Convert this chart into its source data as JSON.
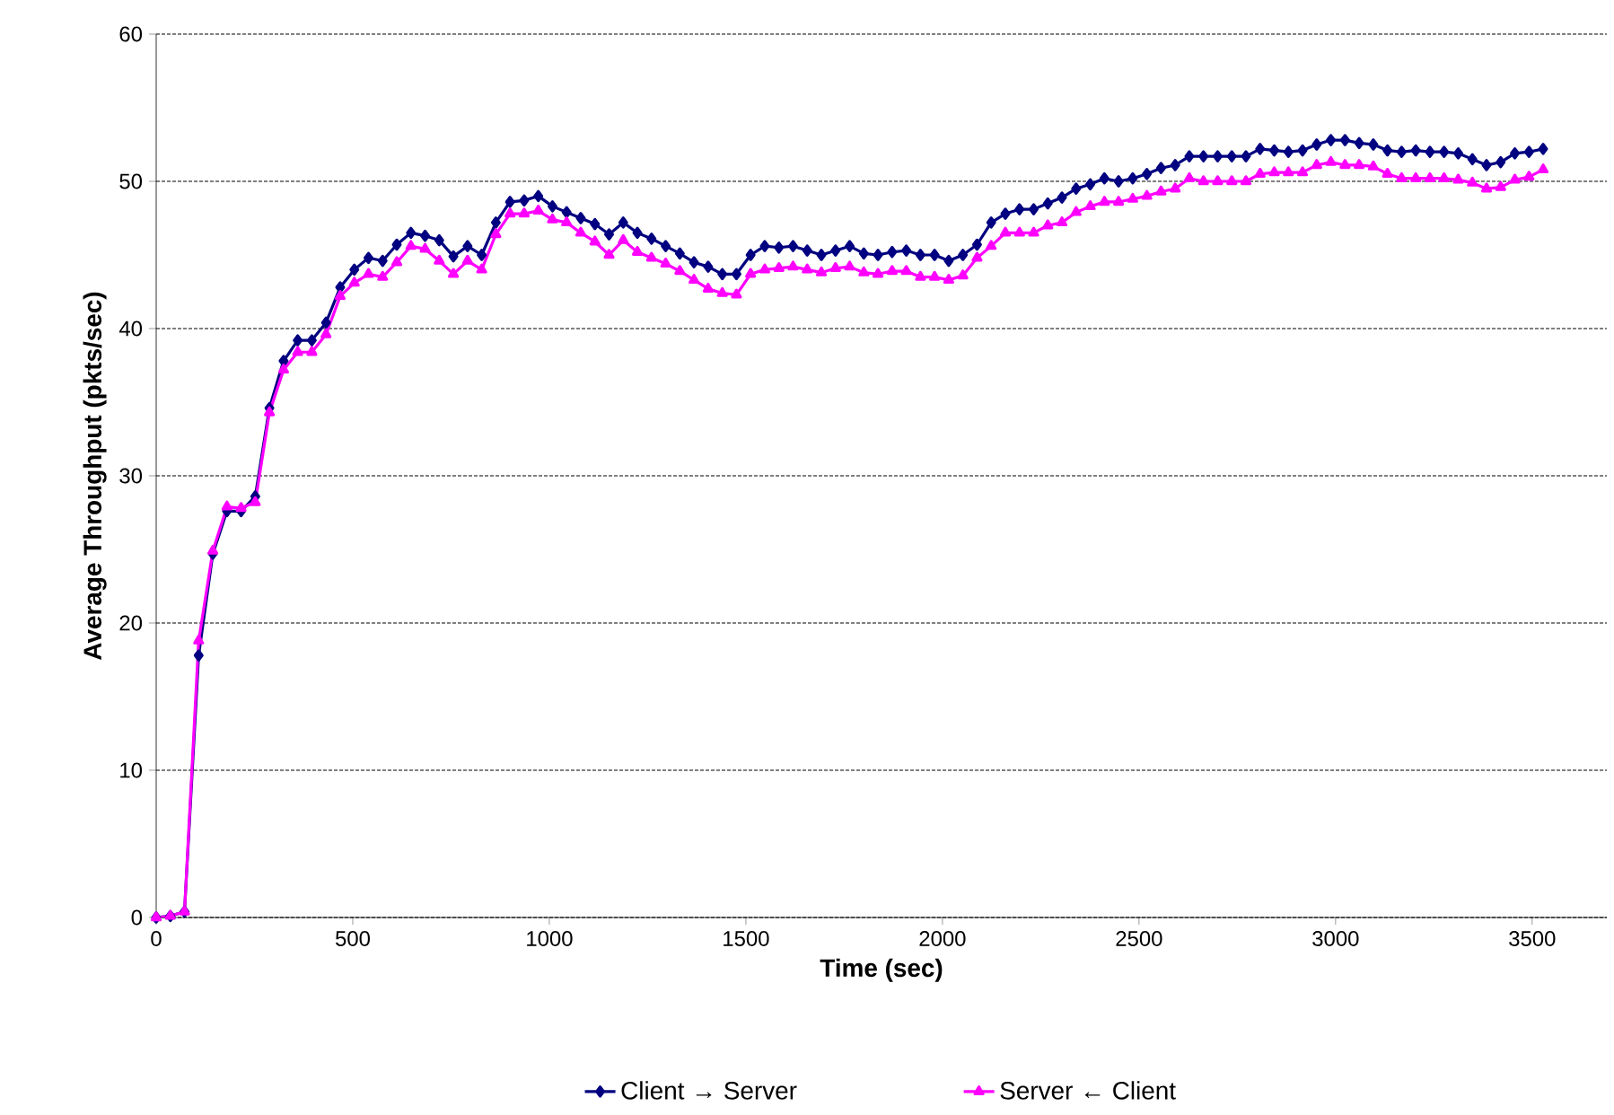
{
  "chart_data": {
    "type": "line",
    "xlabel": "Time (sec)",
    "ylabel": "Average Throughput (pkts/sec)",
    "x": [
      0,
      36,
      72,
      108,
      144,
      180,
      216,
      252,
      288,
      324,
      360,
      396,
      432,
      468,
      504,
      540,
      576,
      612,
      648,
      684,
      720,
      756,
      792,
      828,
      864,
      900,
      936,
      972,
      1008,
      1044,
      1080,
      1116,
      1152,
      1188,
      1224,
      1260,
      1296,
      1332,
      1368,
      1404,
      1440,
      1476,
      1512,
      1548,
      1584,
      1620,
      1656,
      1692,
      1728,
      1764,
      1800,
      1836,
      1872,
      1908,
      1944,
      1980,
      2016,
      2052,
      2088,
      2124,
      2160,
      2196,
      2232,
      2268,
      2304,
      2340,
      2376,
      2412,
      2448,
      2484,
      2520,
      2556,
      2592,
      2628,
      2664,
      2700,
      2736,
      2772,
      2808,
      2844,
      2880,
      2916,
      2952,
      2988,
      3024,
      3060,
      3096,
      3132,
      3168,
      3204,
      3240,
      3276,
      3312,
      3348,
      3384,
      3420,
      3456,
      3492,
      3528
    ],
    "series": [
      {
        "name": "Client → Server",
        "color": "#000080",
        "marker": "diamond",
        "values": [
          0,
          0.1,
          0.4,
          17.8,
          24.7,
          27.6,
          27.6,
          28.6,
          34.6,
          37.8,
          39.2,
          39.2,
          40.4,
          42.8,
          44.0,
          44.8,
          44.6,
          45.7,
          46.5,
          46.3,
          46.0,
          44.9,
          45.6,
          45.0,
          47.2,
          48.6,
          48.7,
          49.0,
          48.3,
          47.9,
          47.5,
          47.1,
          46.4,
          47.2,
          46.5,
          46.1,
          45.6,
          45.1,
          44.5,
          44.2,
          43.7,
          43.7,
          45.0,
          45.6,
          45.5,
          45.6,
          45.3,
          45.0,
          45.3,
          45.6,
          45.1,
          45.0,
          45.2,
          45.3,
          45.0,
          45.0,
          44.6,
          45.0,
          45.7,
          47.2,
          47.8,
          48.1,
          48.1,
          48.5,
          48.9,
          49.5,
          49.8,
          50.2,
          50.0,
          50.2,
          50.5,
          50.9,
          51.1,
          51.7,
          51.7,
          51.7,
          51.7,
          51.7,
          52.2,
          52.1,
          52.0,
          52.1,
          52.5,
          52.8,
          52.8,
          52.6,
          52.5,
          52.1,
          52.0,
          52.1,
          52.0,
          52.0,
          51.9,
          51.5,
          51.1,
          51.3,
          51.9,
          52.0,
          52.2
        ]
      },
      {
        "name": "Server ← Client",
        "color": "#ff00ff",
        "marker": "triangle",
        "values": [
          0,
          0.1,
          0.4,
          18.8,
          24.9,
          27.9,
          27.8,
          28.2,
          34.3,
          37.2,
          38.4,
          38.4,
          39.6,
          42.2,
          43.1,
          43.7,
          43.5,
          44.5,
          45.6,
          45.4,
          44.6,
          43.7,
          44.6,
          44.0,
          46.4,
          47.8,
          47.8,
          48.0,
          47.4,
          47.2,
          46.5,
          45.9,
          45.0,
          46.0,
          45.2,
          44.8,
          44.4,
          43.9,
          43.3,
          42.7,
          42.4,
          42.3,
          43.7,
          44.0,
          44.1,
          44.2,
          44.0,
          43.8,
          44.1,
          44.2,
          43.8,
          43.7,
          43.9,
          43.9,
          43.5,
          43.5,
          43.3,
          43.6,
          44.8,
          45.6,
          46.5,
          46.5,
          46.5,
          47.0,
          47.2,
          47.9,
          48.3,
          48.6,
          48.6,
          48.8,
          49.0,
          49.3,
          49.5,
          50.2,
          50.0,
          50.0,
          50.0,
          50.0,
          50.5,
          50.6,
          50.6,
          50.6,
          51.1,
          51.3,
          51.1,
          51.1,
          51.0,
          50.5,
          50.2,
          50.2,
          50.2,
          50.2,
          50.1,
          49.9,
          49.5,
          49.6,
          50.1,
          50.3,
          50.8
        ]
      }
    ],
    "xlim": [
      0,
      3690
    ],
    "xticks": [
      0,
      500,
      1000,
      1500,
      2000,
      2500,
      3000,
      3500
    ],
    "ylim": [
      0,
      60
    ],
    "yticks": [
      0,
      10,
      20,
      30,
      40,
      50,
      60
    ],
    "grid": "y",
    "legend": "bottom",
    "line_style": "solid"
  }
}
